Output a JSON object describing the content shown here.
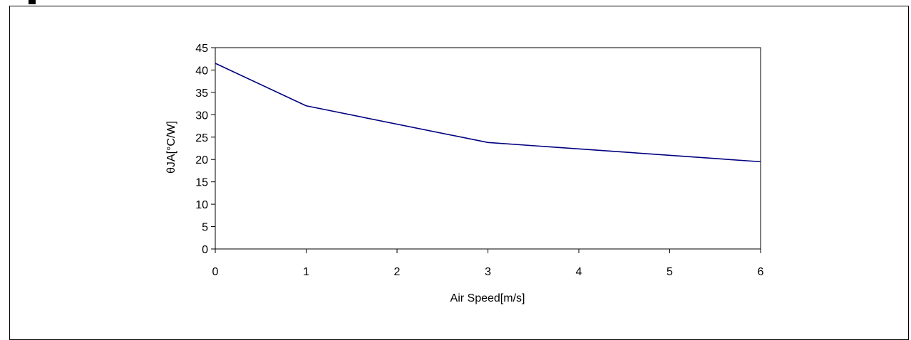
{
  "chart_data": {
    "type": "line",
    "xlabel": "Air Speed[m/s]",
    "ylabel": "θJA[°C/W]",
    "xlim": [
      0,
      6
    ],
    "ylim": [
      0,
      45
    ],
    "xticks": [
      0,
      1,
      2,
      3,
      4,
      5,
      6
    ],
    "yticks": [
      0,
      5,
      10,
      15,
      20,
      25,
      30,
      35,
      40,
      45
    ],
    "grid": false,
    "legend": "none",
    "series": [
      {
        "x": [
          0,
          1,
          3,
          6
        ],
        "y": [
          41.5,
          32,
          23.8,
          19.5
        ]
      }
    ],
    "colors": {
      "line": "#000080",
      "axis": "#000000"
    }
  }
}
